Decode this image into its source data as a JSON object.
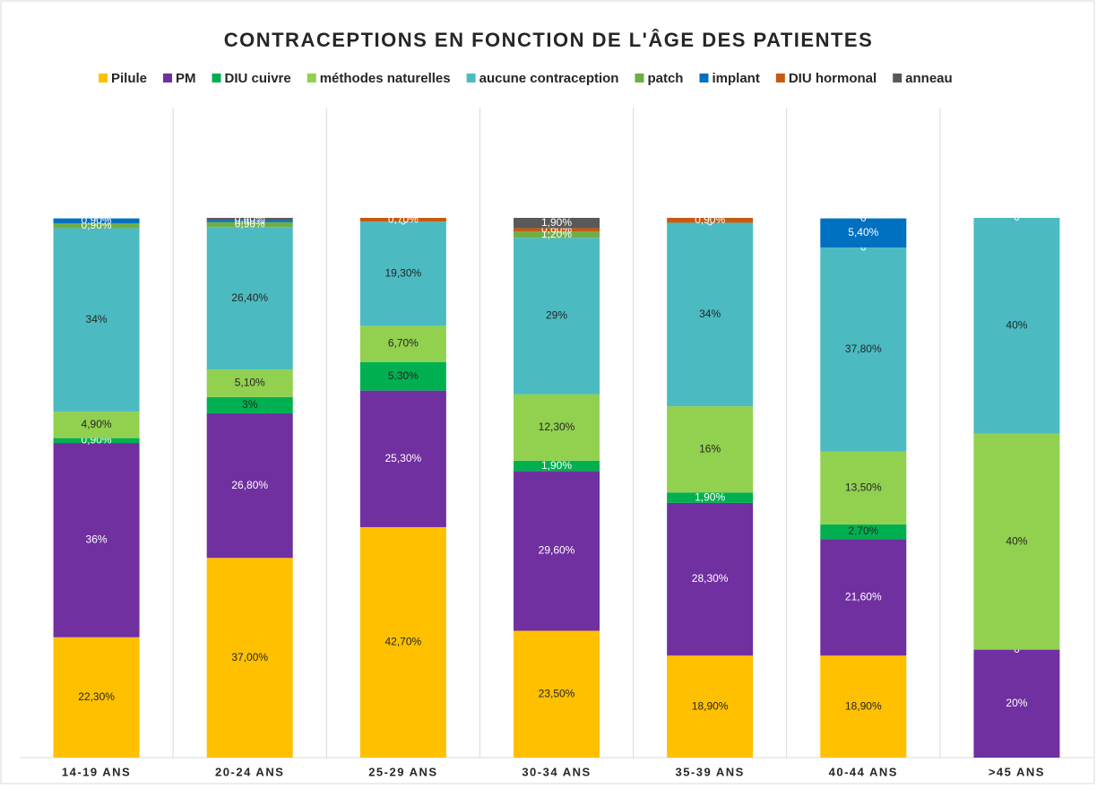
{
  "chart_data": {
    "type": "stacked_bar",
    "title": "CONTRACEPTIONS EN FONCTION DE L'ÂGE DES PATIENTES",
    "categories": [
      "14-19 ANS",
      "20-24 ANS",
      "25-29 ANS",
      "30-34 ANS",
      "35-39 ANS",
      "40-44 ANS",
      ">45 ANS"
    ],
    "ylim": [
      0,
      100
    ],
    "series": [
      {
        "name": "Pilule",
        "color": "#FFC000",
        "values": [
          22.3,
          37.0,
          42.7,
          23.5,
          18.9,
          18.9,
          0
        ],
        "value_labels": [
          "22,30%",
          "37,00%",
          "42,70%",
          "23,50%",
          "18,90%",
          "18,90%",
          "0"
        ]
      },
      {
        "name": "PM",
        "color": "#7030A0",
        "values": [
          36,
          26.8,
          25.3,
          29.6,
          28.3,
          21.6,
          20
        ],
        "value_labels": [
          "36%",
          "26,80%",
          "25,30%",
          "29,60%",
          "28,30%",
          "21,60%",
          "20%"
        ]
      },
      {
        "name": "DIU cuivre",
        "color": "#00B050",
        "values": [
          0.9,
          3,
          5.3,
          1.9,
          1.9,
          2.7,
          0
        ],
        "value_labels": [
          "0,90%",
          "3%",
          "5,30%",
          "1,90%",
          "1,90%",
          "2,70%",
          "0"
        ]
      },
      {
        "name": "méthodes naturelles",
        "color": "#92D050",
        "values": [
          4.9,
          5.1,
          6.7,
          12.3,
          16,
          13.5,
          40
        ],
        "value_labels": [
          "4,90%",
          "5,10%",
          "6,70%",
          "12,30%",
          "16%",
          "13,50%",
          "40%"
        ]
      },
      {
        "name": "aucune contraception",
        "color": "#4BBBC1",
        "values": [
          34,
          26.4,
          19.3,
          29,
          34,
          37.8,
          40
        ],
        "value_labels": [
          "34%",
          "26,40%",
          "19,30%",
          "29%",
          "34%",
          "37,80%",
          "40%"
        ]
      },
      {
        "name": "patch",
        "color": "#70AD47",
        "values": [
          0.9,
          0.9,
          0,
          1.2,
          0,
          0,
          0
        ],
        "value_labels": [
          "0,90%",
          "0,90%",
          "0",
          "1,20%",
          "0",
          "0",
          "0"
        ]
      },
      {
        "name": "implant",
        "color": "#0070C0",
        "values": [
          0.9,
          0.4,
          null,
          null,
          null,
          5.4,
          null
        ],
        "value_labels": [
          "0,90%",
          "0,40%",
          null,
          null,
          null,
          "5,40%",
          null
        ]
      },
      {
        "name": "DIU hormonal",
        "color": "#C55A11",
        "values": [
          null,
          null,
          0.7,
          0.6,
          0.9,
          0,
          null
        ],
        "value_labels": [
          null,
          null,
          "0,70%",
          "0,60%",
          "0,90%",
          "0",
          null
        ]
      },
      {
        "name": "anneau",
        "color": "#595959",
        "values": [
          null,
          0.4,
          null,
          1.9,
          null,
          null,
          null
        ],
        "value_labels": [
          null,
          "0,40%",
          null,
          "1,90%",
          null,
          null,
          null
        ]
      }
    ]
  }
}
